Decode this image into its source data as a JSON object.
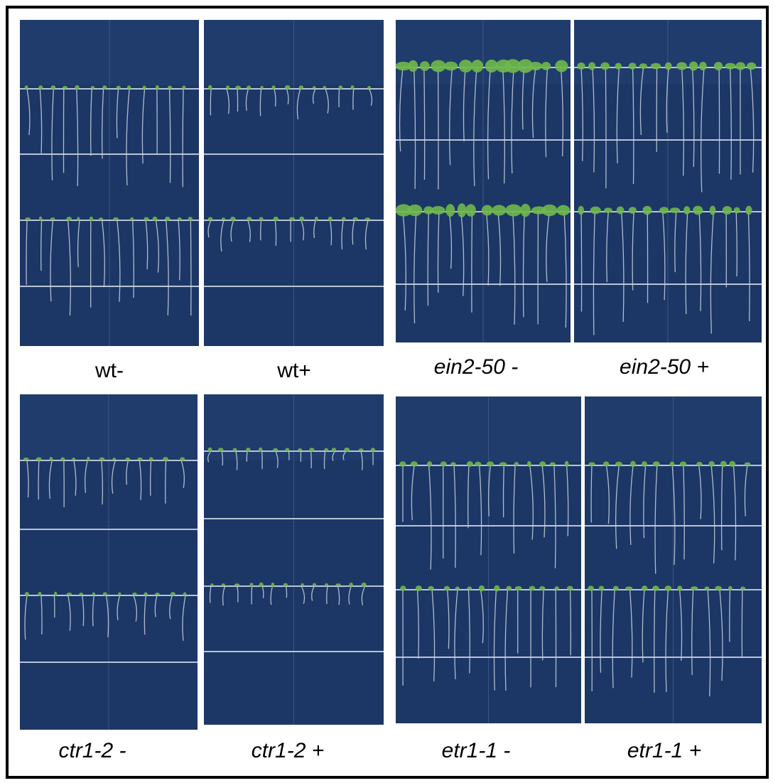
{
  "panels": [
    {
      "label": "wt-"
    },
    {
      "label": "wt+"
    },
    {
      "label": "ein2-50 -"
    },
    {
      "label": "ein2-50 +"
    },
    {
      "label": "ctr1-2 -"
    },
    {
      "label": "ctr1-2 +"
    },
    {
      "label": "etr1-1 -"
    },
    {
      "label": "etr1-1 +"
    }
  ]
}
